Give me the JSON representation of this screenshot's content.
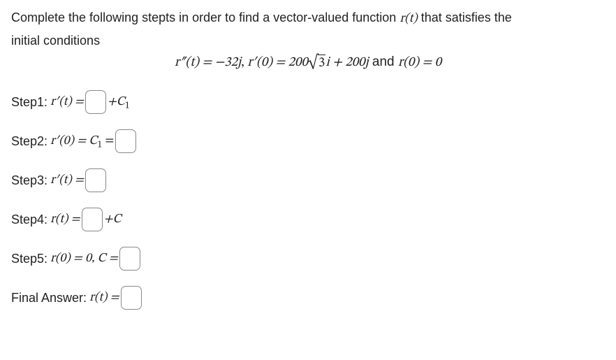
{
  "prompt": {
    "line1_a": "Complete the following stepts in order to find a vector-valued function ",
    "r_t": "r(t)",
    "line1_b": " that satisfies the",
    "line2": "initial conditions"
  },
  "eq": {
    "r2": "r″(t) = −32j",
    "sep1": ", ",
    "r1": "r′(0) = 200",
    "sqrt_arg": "3",
    "after_sqrt": "i + 200j",
    "and": " and ",
    "r0": "r(0) = 0"
  },
  "steps": {
    "s1": {
      "label": "Step1: ",
      "lhs": "r′(t) = ",
      "rhs": "+C",
      "sub": "1"
    },
    "s2": {
      "label": "Step2: ",
      "lhs": "r′(0) = C",
      "sub": "1",
      "eq": " = "
    },
    "s3": {
      "label": "Step3: ",
      "lhs": "r′(t) = "
    },
    "s4": {
      "label": "Step4: ",
      "lhs": "r(t) = ",
      "rhs": "+C"
    },
    "s5": {
      "label": "Step5: ",
      "lhs": "r(0) = 0, C = "
    },
    "final": {
      "label": "Final Answer: ",
      "lhs": "r(t) = "
    }
  }
}
